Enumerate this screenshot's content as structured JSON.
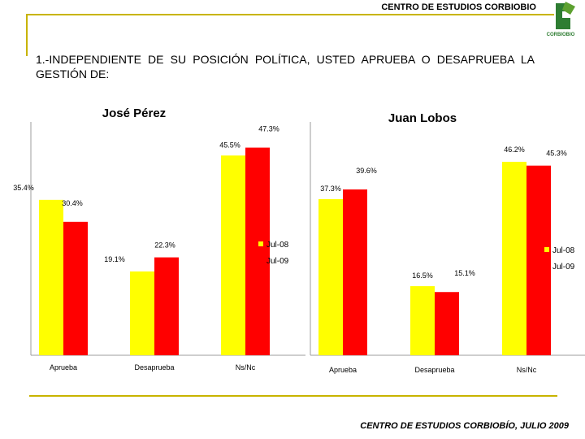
{
  "header": {
    "org": "CENTRO DE ESTUDIOS CORBIOBIO",
    "logo_text": "CORBIOBIO"
  },
  "question": "1.-INDEPENDIENTE DE SU POSICIÓN POLÍTICA, USTED APRUEBA O DESAPRUEBA LA GESTIÓN DE:",
  "footer": "CENTRO DE ESTUDIOS CORBIOBÍO, JULIO 2009",
  "colors": {
    "jul08": "#ffff00",
    "jul09": "#ff0000",
    "accent": "#c8b400"
  },
  "chart_data": [
    {
      "type": "bar",
      "title": "José Pérez",
      "categories": [
        "Aprueba",
        "Desaprueba",
        "Ns/Nc"
      ],
      "series": [
        {
          "name": "Jul-08",
          "values": [
            35.4,
            19.1,
            45.5
          ],
          "labels": [
            "35.4%",
            "19.1%",
            "45.5%"
          ]
        },
        {
          "name": "Jul-09",
          "values": [
            30.4,
            22.3,
            47.3
          ],
          "labels": [
            "30.4%",
            "22.3%",
            "47.3%"
          ]
        }
      ],
      "ylim": [
        0,
        50
      ],
      "legend": "right"
    },
    {
      "type": "bar",
      "title": "Juan Lobos",
      "categories": [
        "Aprueba",
        "Desaprueba",
        "Ns/Nc"
      ],
      "series": [
        {
          "name": "Jul-08",
          "values": [
            37.3,
            16.5,
            46.2
          ],
          "labels": [
            "37.3%",
            "16.5%",
            "46.2%"
          ]
        },
        {
          "name": "Jul-09",
          "values": [
            39.6,
            15.1,
            45.3
          ],
          "labels": [
            "39.6%",
            "15.1%",
            "45.3%"
          ]
        }
      ],
      "ylim": [
        0,
        50
      ],
      "legend": "right"
    }
  ]
}
